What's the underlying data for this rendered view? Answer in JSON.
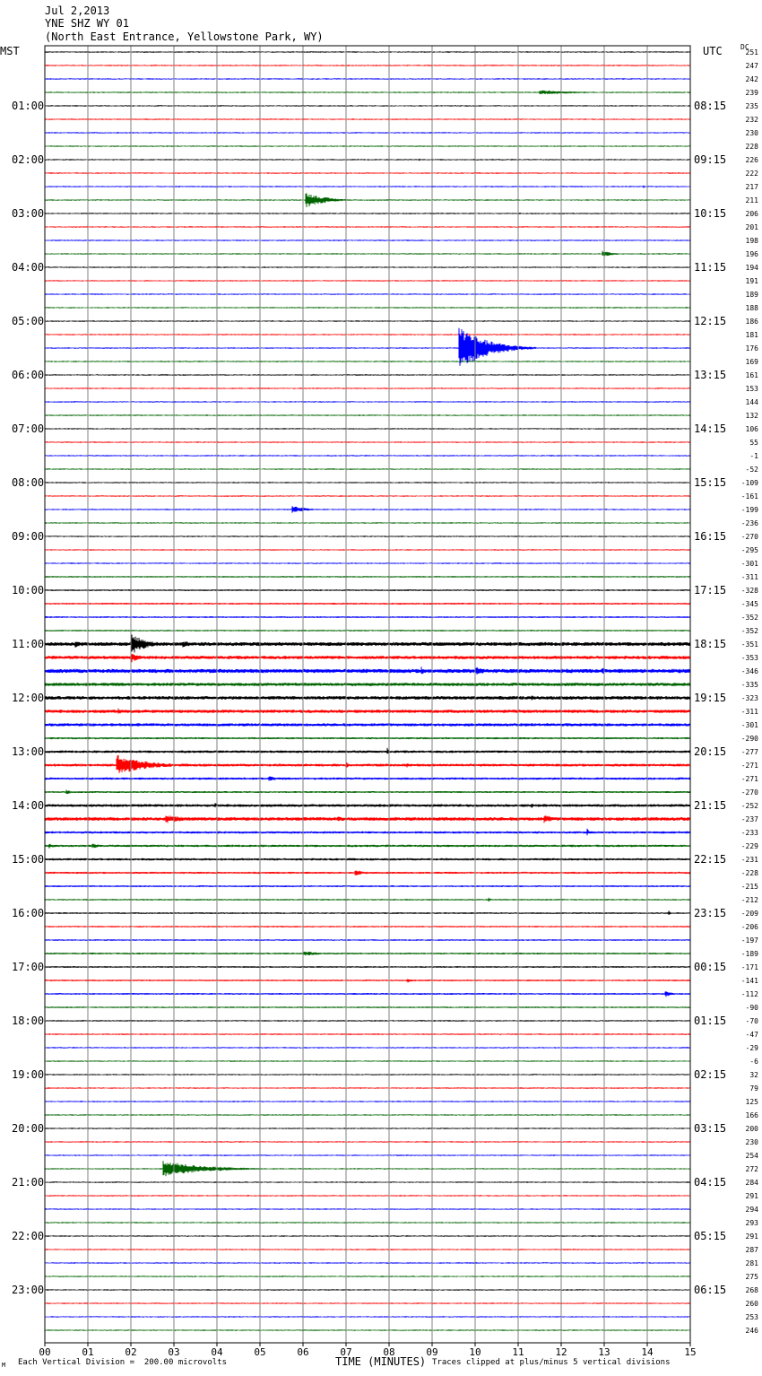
{
  "header": {
    "date": "Jul 2,2013",
    "station": "YNE SHZ WY 01",
    "location": "(North East Entrance, Yellowstone Park, WY)"
  },
  "corner_labels": {
    "left": "MST",
    "right": "UTC",
    "dc": "DC"
  },
  "footer": {
    "logo": "M",
    "left": "Each Vertical Division =  200.00 microvolts",
    "xlabel": "TIME (MINUTES)",
    "right": "Traces clipped at plus/minus 5 vertical divisions"
  },
  "colors": {
    "black": "#000000",
    "red": "#ff0000",
    "blue": "#0000ff",
    "green": "#006400",
    "grid": "#808080"
  },
  "chart_data": {
    "type": "line",
    "title": "",
    "xlabel": "TIME (MINUTES)",
    "ylabel": "",
    "xlim": [
      0,
      15
    ],
    "x_ticks": [
      "00",
      "01",
      "02",
      "03",
      "04",
      "05",
      "06",
      "07",
      "08",
      "09",
      "10",
      "11",
      "12",
      "13",
      "14",
      "15"
    ],
    "trace_colors_cycle": [
      "black",
      "red",
      "blue",
      "green"
    ],
    "mst_hour_labels": [
      "01:00",
      "02:00",
      "03:00",
      "04:00",
      "05:00",
      "06:00",
      "07:00",
      "08:00",
      "09:00",
      "10:00",
      "11:00",
      "12:00",
      "13:00",
      "14:00",
      "15:00",
      "16:00",
      "17:00",
      "18:00",
      "19:00",
      "20:00",
      "21:00",
      "22:00",
      "23:00"
    ],
    "utc_hour_labels": [
      "08:15",
      "09:15",
      "10:15",
      "11:15",
      "12:15",
      "13:15",
      "14:15",
      "15:15",
      "16:15",
      "17:15",
      "18:15",
      "19:15",
      "20:15",
      "21:15",
      "22:15",
      "23:15",
      "00:15",
      "01:15",
      "02:15",
      "03:15",
      "04:15",
      "05:15",
      "06:15"
    ],
    "dc_offsets": [
      251,
      247,
      242,
      239,
      235,
      232,
      230,
      228,
      226,
      222,
      217,
      211,
      206,
      201,
      198,
      196,
      194,
      191,
      189,
      188,
      186,
      181,
      176,
      169,
      161,
      153,
      144,
      132,
      106,
      55,
      -1,
      -52,
      -109,
      -161,
      -199,
      -236,
      -270,
      -295,
      -301,
      -311,
      -328,
      -345,
      -352,
      -352,
      -351,
      -353,
      -346,
      -335,
      -323,
      -311,
      -301,
      -290,
      -277,
      -271,
      -271,
      -270,
      -252,
      -237,
      -233,
      -229,
      -231,
      -228,
      -215,
      -212,
      -209,
      -206,
      -197,
      -189,
      -171,
      -141,
      -112,
      -90,
      -70,
      -47,
      -29,
      -6,
      32,
      79,
      125,
      166,
      200,
      230,
      254,
      272,
      284,
      291,
      294,
      293,
      291,
      287,
      281,
      275,
      268,
      260,
      253,
      246
    ],
    "noise_level": [
      1.0,
      1.0,
      1.0,
      1.0,
      1.0,
      1.0,
      1.0,
      1.0,
      1.0,
      1.0,
      1.0,
      1.0,
      1.0,
      1.0,
      1.0,
      1.0,
      1.0,
      1.0,
      1.0,
      1.0,
      1.0,
      1.0,
      1.0,
      1.0,
      1.0,
      1.0,
      1.0,
      1.0,
      1.0,
      1.0,
      1.0,
      1.0,
      1.0,
      1.0,
      1.0,
      1.0,
      1.0,
      1.0,
      1.0,
      1.2,
      1.3,
      1.4,
      1.3,
      1.2,
      3.0,
      2.6,
      3.2,
      2.6,
      2.8,
      2.6,
      2.4,
      1.6,
      2.0,
      2.2,
      1.8,
      1.5,
      2.2,
      2.8,
      1.8,
      1.8,
      1.8,
      1.6,
      1.4,
      1.2,
      1.3,
      1.2,
      1.2,
      1.4,
      1.3,
      1.3,
      1.4,
      1.2,
      1.1,
      1.1,
      1.0,
      1.0,
      1.0,
      1.0,
      1.0,
      1.0,
      1.0,
      1.0,
      1.0,
      1.0,
      1.0,
      1.0,
      1.0,
      1.0,
      1.0,
      1.0,
      1.0,
      1.0,
      1.0,
      1.0,
      1.0,
      1.0
    ],
    "events": [
      {
        "trace": 3,
        "start_min": 11.5,
        "dur_min": 3.0,
        "amp": 2.5
      },
      {
        "trace": 8,
        "start_min": 8.7,
        "dur_min": 0.1,
        "amp": 2.0
      },
      {
        "trace": 10,
        "start_min": 13.9,
        "dur_min": 0.1,
        "amp": 3.0
      },
      {
        "trace": 11,
        "start_min": 6.05,
        "dur_min": 1.3,
        "amp": 9.0
      },
      {
        "trace": 15,
        "start_min": 12.95,
        "dur_min": 0.8,
        "amp": 3.5
      },
      {
        "trace": 22,
        "start_min": 9.62,
        "dur_min": 1.8,
        "amp": 26.0
      },
      {
        "trace": 34,
        "start_min": 5.75,
        "dur_min": 1.0,
        "amp": 4.0
      },
      {
        "trace": 44,
        "start_min": 2.0,
        "dur_min": 1.1,
        "amp": 12.0
      },
      {
        "trace": 44,
        "start_min": 0.7,
        "dur_min": 0.6,
        "amp": 5.0
      },
      {
        "trace": 44,
        "start_min": 3.2,
        "dur_min": 0.8,
        "amp": 4.0
      },
      {
        "trace": 45,
        "start_min": 2.0,
        "dur_min": 0.6,
        "amp": 6.0
      },
      {
        "trace": 46,
        "start_min": 8.75,
        "dur_min": 0.3,
        "amp": 5.0
      },
      {
        "trace": 46,
        "start_min": 10.0,
        "dur_min": 0.9,
        "amp": 5.0
      },
      {
        "trace": 46,
        "start_min": 12.95,
        "dur_min": 0.3,
        "amp": 4.0
      },
      {
        "trace": 48,
        "start_min": 11.3,
        "dur_min": 0.5,
        "amp": 3.0
      },
      {
        "trace": 49,
        "start_min": 1.7,
        "dur_min": 0.3,
        "amp": 4.0
      },
      {
        "trace": 52,
        "start_min": 7.95,
        "dur_min": 0.15,
        "amp": 5.0
      },
      {
        "trace": 53,
        "start_min": 1.65,
        "dur_min": 2.0,
        "amp": 12.0
      },
      {
        "trace": 53,
        "start_min": 7.0,
        "dur_min": 0.3,
        "amp": 4.0
      },
      {
        "trace": 53,
        "start_min": 8.4,
        "dur_min": 0.2,
        "amp": 4.0
      },
      {
        "trace": 54,
        "start_min": 5.2,
        "dur_min": 0.7,
        "amp": 3.0
      },
      {
        "trace": 55,
        "start_min": 0.5,
        "dur_min": 0.4,
        "amp": 3.0
      },
      {
        "trace": 56,
        "start_min": 3.95,
        "dur_min": 0.2,
        "amp": 3.5
      },
      {
        "trace": 56,
        "start_min": 11.3,
        "dur_min": 0.3,
        "amp": 3.0
      },
      {
        "trace": 57,
        "start_min": 2.8,
        "dur_min": 1.4,
        "amp": 5.0
      },
      {
        "trace": 57,
        "start_min": 6.8,
        "dur_min": 0.6,
        "amp": 4.0
      },
      {
        "trace": 57,
        "start_min": 11.6,
        "dur_min": 0.8,
        "amp": 5.0
      },
      {
        "trace": 58,
        "start_min": 12.6,
        "dur_min": 0.15,
        "amp": 5.0
      },
      {
        "trace": 59,
        "start_min": 0.1,
        "dur_min": 0.5,
        "amp": 3.0
      },
      {
        "trace": 59,
        "start_min": 1.1,
        "dur_min": 0.7,
        "amp": 3.0
      },
      {
        "trace": 61,
        "start_min": 7.2,
        "dur_min": 0.6,
        "amp": 4.0
      },
      {
        "trace": 63,
        "start_min": 10.3,
        "dur_min": 0.2,
        "amp": 3.0
      },
      {
        "trace": 64,
        "start_min": 14.5,
        "dur_min": 0.15,
        "amp": 3.0
      },
      {
        "trace": 67,
        "start_min": 6.0,
        "dur_min": 1.2,
        "amp": 3.0
      },
      {
        "trace": 69,
        "start_min": 8.4,
        "dur_min": 0.4,
        "amp": 3.0
      },
      {
        "trace": 70,
        "start_min": 14.4,
        "dur_min": 0.5,
        "amp": 4.0
      },
      {
        "trace": 83,
        "start_min": 2.75,
        "dur_min": 2.8,
        "amp": 9.0
      }
    ]
  }
}
